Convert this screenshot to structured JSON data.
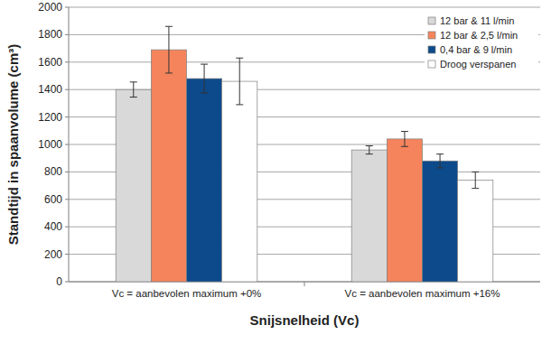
{
  "chart_data": {
    "type": "bar",
    "x_label": "Snijsnelheid (Vc)",
    "y_label": "Standtijd in spaanvolume (cm³)",
    "categories": [
      "Vc = aanbevolen maximum +0%",
      "Vc = aanbevolen maximum +16%"
    ],
    "series": [
      {
        "name": "12 bar & 11 l/min",
        "color": "#d9d9d9",
        "values": [
          1400,
          960
        ],
        "errors": [
          55,
          30
        ]
      },
      {
        "name": "12 bar & 2,5 l/min",
        "color": "#f5845c",
        "values": [
          1690,
          1040
        ],
        "errors": [
          170,
          55
        ]
      },
      {
        "name": "0,4 bar & 9 l/min",
        "color": "#0c4a8c",
        "values": [
          1480,
          880
        ],
        "errors": [
          105,
          50
        ]
      },
      {
        "name": "Droog verspanen",
        "color": "#ffffff",
        "values": [
          1460,
          740
        ],
        "errors": [
          170,
          60
        ]
      }
    ],
    "ylim": [
      0,
      2000
    ],
    "yticks": [
      0,
      200,
      400,
      600,
      800,
      1000,
      1200,
      1400,
      1600,
      1800,
      2000
    ],
    "grid": true,
    "legend": "top-right"
  }
}
